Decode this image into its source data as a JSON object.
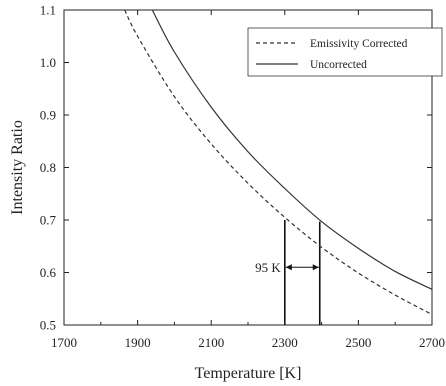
{
  "chart_data": {
    "type": "line",
    "title": "",
    "xlabel": "Temperature [K]",
    "ylabel": "Intensity Ratio",
    "xlim": [
      1700,
      2700
    ],
    "ylim": [
      0.5,
      1.1
    ],
    "x_ticks": [
      1700,
      1900,
      2100,
      2300,
      2500,
      2700
    ],
    "x_tick_labels": [
      "1700",
      "1900",
      "2100",
      "2300",
      "2500",
      "2700"
    ],
    "y_ticks": [
      0.5,
      0.6,
      0.7,
      0.8,
      0.9,
      1.0,
      1.1
    ],
    "y_tick_labels": [
      "0.5",
      "0.6",
      "0.7",
      "0.8",
      "0.9",
      "1.0",
      "1.1"
    ],
    "grid": false,
    "legend_position": "top-right",
    "series": [
      {
        "name": "Emissivity Corrected",
        "style": "dashed",
        "color": "#333333",
        "x": [
          1865,
          1900,
          2000,
          2100,
          2200,
          2300,
          2400,
          2500,
          2600,
          2700
        ],
        "y": [
          1.1,
          1.05,
          0.935,
          0.845,
          0.77,
          0.705,
          0.648,
          0.599,
          0.557,
          0.52
        ]
      },
      {
        "name": "Uncorrected",
        "style": "solid",
        "color": "#333333",
        "x": [
          1940,
          2000,
          2100,
          2200,
          2300,
          2400,
          2500,
          2600,
          2700
        ],
        "y": [
          1.1,
          1.02,
          0.915,
          0.83,
          0.76,
          0.697,
          0.646,
          0.602,
          0.568
        ]
      }
    ],
    "annotations": [
      {
        "text": "95 K",
        "x_from": 2300,
        "x_to": 2395,
        "y": 0.61,
        "line_top_left": 0.7,
        "line_top_right": 0.697
      }
    ]
  }
}
